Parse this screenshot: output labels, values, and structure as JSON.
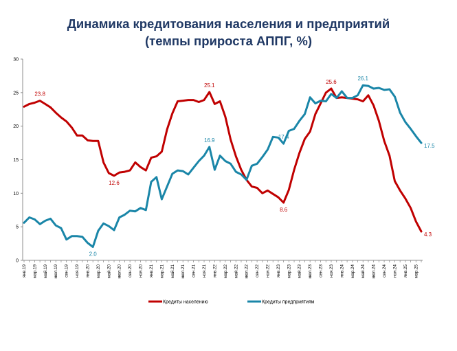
{
  "title": "Динамика кредитования населения и предприятий",
  "subtitle": "(темпы прироста АППГ, %)",
  "chart_data": {
    "type": "line",
    "xlabel": "",
    "ylabel": "",
    "ylim": [
      0,
      30
    ],
    "yticks": [
      0,
      5,
      10,
      15,
      20,
      25,
      30
    ],
    "grid": false,
    "legend_position": "bottom",
    "x_tick_labels": [
      "янв.19",
      "мар.19",
      "май.19",
      "июл.19",
      "сен.19",
      "ноя.19",
      "янв.20",
      "мар.20",
      "май.20",
      "июл.20",
      "сен.20",
      "ноя.20",
      "янв.21",
      "мар.21",
      "май.21",
      "июл.21",
      "сен.21",
      "ноя.21",
      "янв.22",
      "мар.22",
      "май.22",
      "июл.22",
      "сен.22",
      "ноя.22",
      "янв.23",
      "мар.23",
      "май.23",
      "июл.23",
      "сен.23",
      "ноя.23",
      "янв.24",
      "мар.24",
      "май.24",
      "июл.24",
      "сен.24",
      "ноя.24",
      "янв.25",
      "мар.25"
    ],
    "series": [
      {
        "name": "Кредиты населению",
        "color": "#c00000",
        "values": [
          22.9,
          23.3,
          23.5,
          23.8,
          23.3,
          22.8,
          22.0,
          21.3,
          20.7,
          19.8,
          18.6,
          18.6,
          17.9,
          17.8,
          17.8,
          14.6,
          13.0,
          12.6,
          13.1,
          13.2,
          13.4,
          14.6,
          13.9,
          13.4,
          15.3,
          15.5,
          16.2,
          19.5,
          21.9,
          23.7,
          23.8,
          23.9,
          23.9,
          23.6,
          23.9,
          25.1,
          23.3,
          23.7,
          21.4,
          18.0,
          15.5,
          13.5,
          12.0,
          11.0,
          10.8,
          10.0,
          10.4,
          9.9,
          9.4,
          8.6,
          10.5,
          13.5,
          16.0,
          18.1,
          19.2,
          21.8,
          23.4,
          25.0,
          25.6,
          24.2,
          24.3,
          24.2,
          24.1,
          24.0,
          23.7,
          24.6,
          23.1,
          20.8,
          17.8,
          15.6,
          11.8,
          10.4,
          9.2,
          7.8,
          5.8,
          4.3
        ],
        "labels": [
          {
            "index": 3,
            "text": "23.8",
            "pos": "above"
          },
          {
            "index": 17,
            "text": "12.6",
            "pos": "below"
          },
          {
            "index": 35,
            "text": "25.1",
            "pos": "above"
          },
          {
            "index": 49,
            "text": "8.6",
            "pos": "below"
          },
          {
            "index": 58,
            "text": "25.6",
            "pos": "above"
          },
          {
            "index": 75,
            "text": "4.3",
            "pos": "right"
          }
        ]
      },
      {
        "name": "Кредиты предприятиям",
        "color": "#1a86a8",
        "values": [
          5.6,
          6.4,
          6.1,
          5.4,
          5.9,
          6.2,
          5.2,
          4.8,
          3.1,
          3.6,
          3.6,
          3.5,
          2.6,
          2.0,
          4.4,
          5.5,
          5.1,
          4.5,
          6.4,
          6.8,
          7.4,
          7.3,
          7.8,
          7.5,
          11.7,
          12.4,
          9.1,
          11.0,
          12.9,
          13.4,
          13.3,
          12.8,
          13.8,
          14.8,
          15.6,
          16.9,
          13.5,
          15.6,
          14.8,
          14.4,
          13.2,
          12.8,
          12.0,
          14.1,
          14.4,
          15.4,
          16.5,
          18.4,
          18.3,
          17.4,
          19.3,
          19.6,
          20.8,
          21.8,
          24.3,
          23.4,
          23.8,
          23.7,
          24.8,
          24.2,
          25.2,
          24.2,
          24.2,
          24.6,
          26.1,
          26.0,
          25.6,
          25.7,
          25.4,
          25.5,
          24.4,
          22.0,
          20.6,
          19.6,
          18.5,
          17.5
        ],
        "labels": [
          {
            "index": 13,
            "text": "2.0",
            "pos": "below"
          },
          {
            "index": 35,
            "text": "16.9",
            "pos": "above"
          },
          {
            "index": 49,
            "text": "17.4",
            "pos": "above"
          },
          {
            "index": 64,
            "text": "26.1",
            "pos": "above"
          },
          {
            "index": 75,
            "text": "17.5",
            "pos": "right"
          }
        ]
      }
    ]
  }
}
